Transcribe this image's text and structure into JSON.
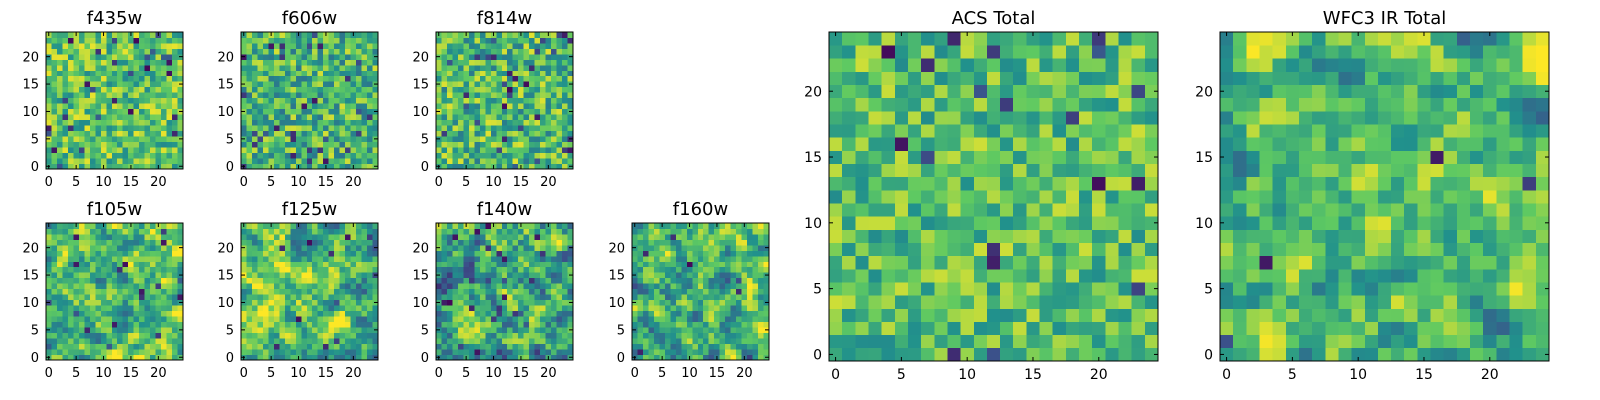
{
  "figure": {
    "colormap": "viridis",
    "colormap_stops": [
      "#440154",
      "#3b528b",
      "#21918c",
      "#5ec962",
      "#fde725"
    ],
    "background": "#ffffff"
  },
  "chart_data": [
    {
      "type": "heatmap",
      "title": "f435w",
      "grid": [
        25,
        25
      ],
      "xlim": [
        0,
        24
      ],
      "ylim": [
        0,
        24
      ],
      "xticks": [
        "0",
        "5",
        "10",
        "15",
        "20"
      ],
      "yticks": [
        "0",
        "5",
        "10",
        "15",
        "20"
      ],
      "seed": 11,
      "style": "noise",
      "mean": 0.72,
      "spread": 0.5,
      "holes": 0.05
    },
    {
      "type": "heatmap",
      "title": "f606w",
      "grid": [
        25,
        25
      ],
      "xlim": [
        0,
        24
      ],
      "ylim": [
        0,
        24
      ],
      "xticks": [
        "0",
        "5",
        "10",
        "15",
        "20"
      ],
      "yticks": [
        "0",
        "5",
        "10",
        "15",
        "20"
      ],
      "seed": 23,
      "style": "noise",
      "mean": 0.66,
      "spread": 0.55,
      "holes": 0.04
    },
    {
      "type": "heatmap",
      "title": "f814w",
      "grid": [
        25,
        25
      ],
      "xlim": [
        0,
        24
      ],
      "ylim": [
        0,
        24
      ],
      "xticks": [
        "0",
        "5",
        "10",
        "15",
        "20"
      ],
      "yticks": [
        "0",
        "5",
        "10",
        "15",
        "20"
      ],
      "seed": 37,
      "style": "noise",
      "mean": 0.68,
      "spread": 0.55,
      "holes": 0.05
    },
    {
      "type": "heatmap",
      "title": "f105w",
      "grid": [
        25,
        25
      ],
      "xlim": [
        0,
        24
      ],
      "ylim": [
        0,
        24
      ],
      "xticks": [
        "0",
        "5",
        "10",
        "15",
        "20"
      ],
      "yticks": [
        "0",
        "5",
        "10",
        "15",
        "20"
      ],
      "seed": 41,
      "style": "smooth",
      "mean": 0.68,
      "spread": 0.6,
      "holes": 0.02
    },
    {
      "type": "heatmap",
      "title": "f125w",
      "grid": [
        25,
        25
      ],
      "xlim": [
        0,
        24
      ],
      "ylim": [
        0,
        24
      ],
      "xticks": [
        "0",
        "5",
        "10",
        "15",
        "20"
      ],
      "yticks": [
        "0",
        "5",
        "10",
        "15",
        "20"
      ],
      "seed": 53,
      "style": "smooth",
      "mean": 0.7,
      "spread": 0.6,
      "holes": 0.02
    },
    {
      "type": "heatmap",
      "title": "f140w",
      "grid": [
        25,
        25
      ],
      "xlim": [
        0,
        24
      ],
      "ylim": [
        0,
        24
      ],
      "xticks": [
        "0",
        "5",
        "10",
        "15",
        "20"
      ],
      "yticks": [
        "0",
        "5",
        "10",
        "15",
        "20"
      ],
      "seed": 67,
      "style": "smooth",
      "mean": 0.62,
      "spread": 0.65,
      "holes": 0.03
    },
    {
      "type": "heatmap",
      "title": "f160w",
      "grid": [
        25,
        25
      ],
      "xlim": [
        0,
        24
      ],
      "ylim": [
        0,
        24
      ],
      "xticks": [
        "0",
        "5",
        "10",
        "15",
        "20"
      ],
      "yticks": [
        "0",
        "5",
        "10",
        "15",
        "20"
      ],
      "seed": 79,
      "style": "smooth",
      "mean": 0.66,
      "spread": 0.6,
      "holes": 0.02
    },
    {
      "type": "heatmap",
      "title": "ACS Total",
      "grid": [
        25,
        25
      ],
      "xlim": [
        0,
        24
      ],
      "ylim": [
        0,
        24
      ],
      "xticks": [
        "0",
        "5",
        "10",
        "15",
        "20"
      ],
      "yticks": [
        "0",
        "5",
        "10",
        "15",
        "20"
      ],
      "seed": 97,
      "style": "noise",
      "mean": 0.7,
      "spread": 0.45,
      "holes": 0.035
    },
    {
      "type": "heatmap",
      "title": "WFC3 IR Total",
      "grid": [
        25,
        25
      ],
      "xlim": [
        0,
        24
      ],
      "ylim": [
        0,
        24
      ],
      "xticks": [
        "0",
        "5",
        "10",
        "15",
        "20"
      ],
      "yticks": [
        "0",
        "5",
        "10",
        "15",
        "20"
      ],
      "seed": 113,
      "style": "smooth",
      "mean": 0.68,
      "spread": 0.55,
      "holes": 0.01
    }
  ]
}
